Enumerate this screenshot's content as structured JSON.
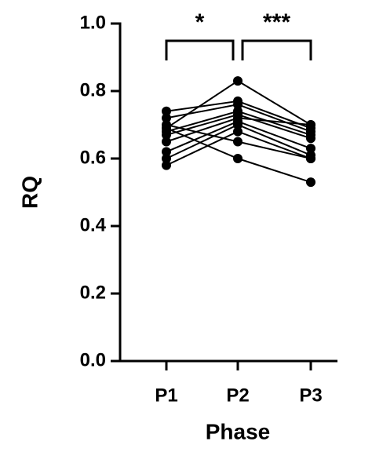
{
  "chart_data": {
    "type": "line",
    "x_label": "Phase",
    "y_label": "RQ",
    "categories": [
      "P1",
      "P2",
      "P3"
    ],
    "color": "#000000",
    "series": [
      {
        "values": [
          0.69,
          0.83,
          0.7
        ]
      },
      {
        "values": [
          0.74,
          0.77,
          0.69
        ]
      },
      {
        "values": [
          0.72,
          0.76,
          0.68
        ]
      },
      {
        "values": [
          0.68,
          0.74,
          0.67
        ]
      },
      {
        "values": [
          0.67,
          0.73,
          0.66
        ]
      },
      {
        "values": [
          0.65,
          0.72,
          0.7
        ]
      },
      {
        "values": [
          0.62,
          0.71,
          0.63
        ]
      },
      {
        "values": [
          0.6,
          0.7,
          0.61
        ]
      },
      {
        "values": [
          0.58,
          0.68,
          0.6
        ]
      },
      {
        "values": [
          0.7,
          0.65,
          0.6
        ]
      },
      {
        "values": [
          0.69,
          0.6,
          0.53
        ]
      }
    ],
    "ylim": [
      0,
      1
    ],
    "yticks": [
      {
        "value": 0,
        "label": "0.0"
      },
      0.2,
      0.4,
      0.6,
      0.8,
      {
        "value": 1,
        "label": "1.0"
      }
    ],
    "annotations": [
      {
        "text": "*",
        "from": 0,
        "to": 1
      },
      {
        "text": "***",
        "from": 1,
        "to": 2
      }
    ]
  }
}
